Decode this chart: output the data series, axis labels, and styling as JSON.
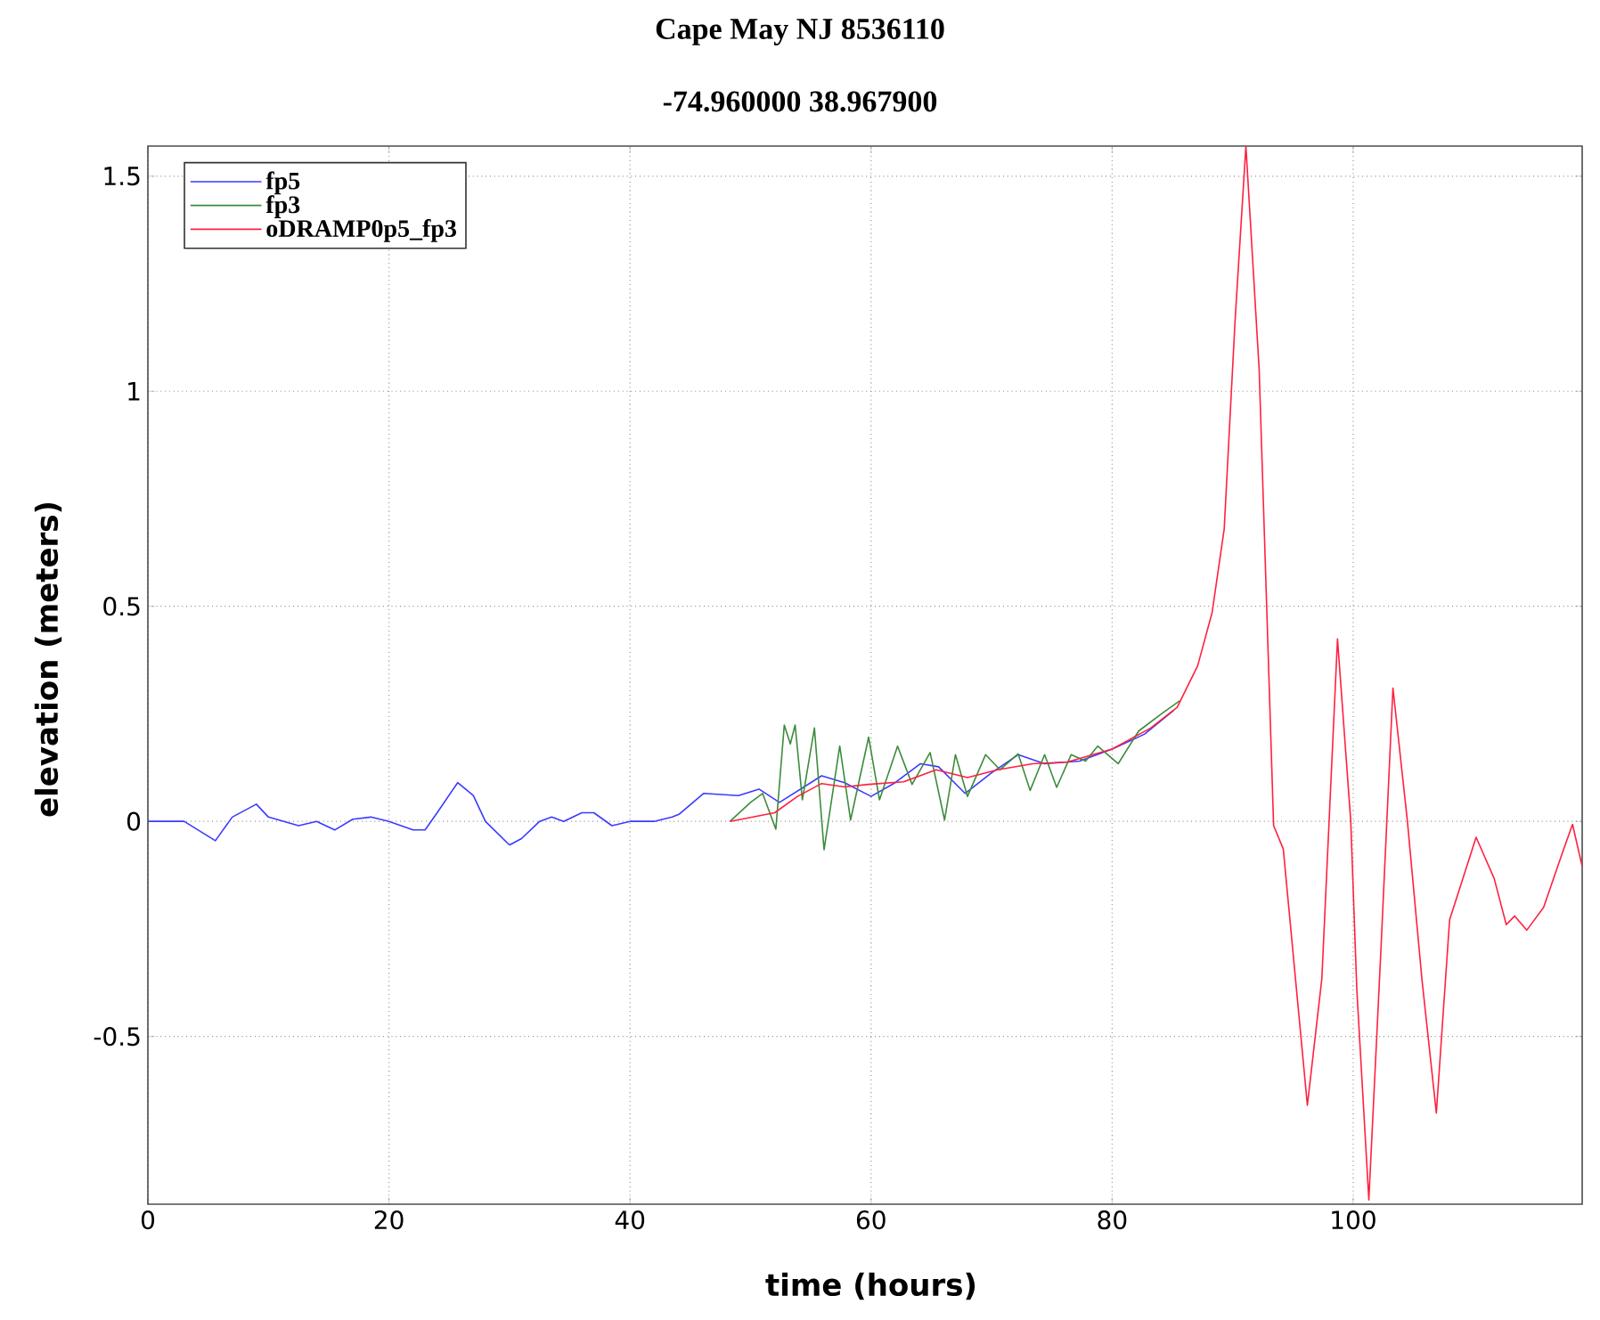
{
  "chart_data": {
    "type": "line",
    "title": "Cape May NJ 8536110",
    "subtitle": "-74.960000 38.967900",
    "xlabel": "time (hours)",
    "ylabel": "elevation (meters)",
    "xlim": [
      0,
      119
    ],
    "ylim": [
      -0.89,
      1.57
    ],
    "xticks": [
      0,
      20,
      40,
      60,
      80,
      100
    ],
    "yticks": [
      -0.5,
      0,
      0.5,
      1,
      1.5
    ],
    "grid": true,
    "legend": "top left",
    "marker": "none",
    "line_style": "solid",
    "series": [
      {
        "name": "fp5",
        "color": "#3a3aff",
        "x": [
          0,
          3,
          5.6,
          7,
          9,
          10,
          12.5,
          14,
          15.5,
          17,
          18.5,
          20,
          22,
          23,
          24,
          25.7,
          27,
          28,
          30,
          31,
          32.5,
          33.5,
          34.5,
          36,
          37,
          38.5,
          40,
          42,
          43.5,
          44.1,
          46.1,
          49,
          50.7,
          52.4,
          55.9,
          57.8,
          60,
          62,
          64.1,
          65.6,
          67.8,
          70,
          72.2,
          74.4,
          77.3,
          80,
          82.7,
          85.1
        ],
        "values": [
          0,
          0,
          -0.045,
          0.01,
          0.04,
          0.01,
          -0.01,
          0,
          -0.02,
          0.005,
          0.01,
          0,
          -0.02,
          -0.02,
          0.02,
          0.09,
          0.06,
          0,
          -0.055,
          -0.04,
          0,
          0.01,
          0,
          0.02,
          0.02,
          -0.01,
          0,
          0,
          0.01,
          0.017,
          0.065,
          0.06,
          0.075,
          0.044,
          0.106,
          0.09,
          0.058,
          0.09,
          0.134,
          0.127,
          0.065,
          0.113,
          0.155,
          0.134,
          0.14,
          0.168,
          0.203,
          0.258
        ]
      },
      {
        "name": "fp3",
        "color": "#3c8c3c",
        "x": [
          48.3,
          50,
          51,
          52.1,
          52.8,
          53.3,
          53.7,
          54.3,
          55.3,
          56.1,
          57.4,
          58.3,
          59.8,
          60.7,
          62.2,
          63.4,
          64.9,
          66.1,
          67,
          68,
          69.5,
          70.7,
          72.2,
          73.2,
          74.4,
          75.4,
          76.6,
          77.8,
          78.8,
          80.5,
          82.2,
          84.1,
          85.6
        ],
        "values": [
          0,
          0.044,
          0.065,
          -0.018,
          0.224,
          0.18,
          0.224,
          0.05,
          0.217,
          -0.066,
          0.175,
          0.003,
          0.196,
          0.05,
          0.175,
          0.086,
          0.16,
          0.003,
          0.155,
          0.058,
          0.155,
          0.12,
          0.157,
          0.072,
          0.155,
          0.079,
          0.155,
          0.14,
          0.175,
          0.134,
          0.21,
          0.25,
          0.28
        ]
      },
      {
        "name": "oDRAMP0p5_fp3",
        "color": "#ff2040",
        "x": [
          48.3,
          52,
          53.9,
          55.9,
          57.8,
          59.8,
          62.7,
          65.4,
          68,
          70.5,
          73.4,
          76.3,
          80,
          83.2,
          85.4,
          87.1,
          88.3,
          89.3,
          90.2,
          91.1,
          92.2,
          93.4,
          94.2,
          96.2,
          97.4,
          98.7,
          99.8,
          100.3,
          101.3,
          102.3,
          103.3,
          104.5,
          105.7,
          106.9,
          108,
          110.2,
          111.7,
          112.7,
          113.4,
          114.4,
          115.8,
          117.3,
          118.2,
          119
        ],
        "values": [
          0,
          0.02,
          0.058,
          0.088,
          0.08,
          0.086,
          0.092,
          0.12,
          0.102,
          0.12,
          0.134,
          0.138,
          0.168,
          0.217,
          0.265,
          0.362,
          0.486,
          0.68,
          1.163,
          1.57,
          1.05,
          -0.01,
          -0.064,
          -0.66,
          -0.366,
          0.424,
          0,
          -0.39,
          -0.88,
          -0.3,
          0.31,
          0,
          -0.366,
          -0.678,
          -0.229,
          -0.037,
          -0.133,
          -0.24,
          -0.22,
          -0.253,
          -0.2,
          -0.078,
          -0.007,
          -0.105
        ]
      }
    ]
  }
}
